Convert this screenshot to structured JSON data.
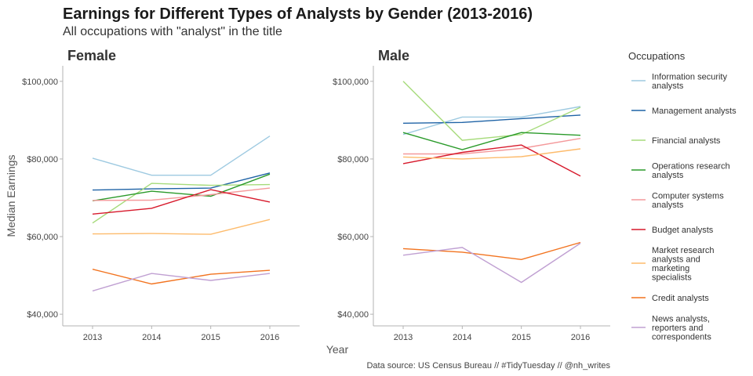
{
  "chart_data": {
    "type": "line",
    "title": "Earnings for Different Types of Analysts by Gender (2013-2016)",
    "subtitle": "All occupations with \"analyst\" in the title",
    "xlabel": "Year",
    "ylabel": "Median Earnings",
    "caption": "Data source: US Census Bureau // #TidyTuesday // @nh_writes",
    "legend_title": "Occupations",
    "legend_position": "right",
    "grid": false,
    "x": [
      2013,
      2014,
      2015,
      2016
    ],
    "x_tick_labels": [
      "2013",
      "2014",
      "2015",
      "2016"
    ],
    "ylim": [
      37000,
      104000
    ],
    "y_ticks": [
      40000,
      60000,
      80000,
      100000
    ],
    "y_tick_labels": [
      "$40,000",
      "$60,000",
      "$80,000",
      "$100,000"
    ],
    "series_meta": [
      {
        "name": "Information security analysts",
        "color": "#9ecae1"
      },
      {
        "name": "Management analysts",
        "color": "#1f63a6"
      },
      {
        "name": "Financial analysts",
        "color": "#a6db7b"
      },
      {
        "name": "Operations research analysts",
        "color": "#2a9a2a"
      },
      {
        "name": "Computer systems analysts",
        "color": "#f4999b"
      },
      {
        "name": "Budget analysts",
        "color": "#d7192b"
      },
      {
        "name": "Market research analysts and marketing specialists",
        "color": "#fdbb6c"
      },
      {
        "name": "Credit analysts",
        "color": "#f2731f"
      },
      {
        "name": "News analysts, reporters and correspondents",
        "color": "#c0a0d2"
      }
    ],
    "legend_labels": [
      [
        "Information security",
        "analysts"
      ],
      [
        "Management analysts"
      ],
      [
        "Financial analysts"
      ],
      [
        "Operations research",
        "analysts"
      ],
      [
        "Computer systems",
        "analysts"
      ],
      [
        "Budget analysts"
      ],
      [
        "Market research",
        "analysts and",
        "marketing",
        "specialists"
      ],
      [
        "Credit analysts"
      ],
      [
        "News analysts,",
        "reporters and",
        "correspondents"
      ]
    ],
    "panels": [
      {
        "label": "Female",
        "series": [
          {
            "name": "Information security analysts",
            "values": [
              80200,
              75800,
              75800,
              85900
            ]
          },
          {
            "name": "Management analysts",
            "values": [
              72000,
              72300,
              72500,
              76400
            ]
          },
          {
            "name": "Financial analysts",
            "values": [
              63500,
              73700,
              73200,
              73400
            ]
          },
          {
            "name": "Operations research analysts",
            "values": [
              69200,
              71700,
              70400,
              76100
            ]
          },
          {
            "name": "Computer systems analysts",
            "values": [
              69300,
              69400,
              70800,
              72500
            ]
          },
          {
            "name": "Budget analysts",
            "values": [
              65800,
              67300,
              72100,
              68900
            ]
          },
          {
            "name": "Market research analysts and marketing specialists",
            "values": [
              60700,
              60800,
              60600,
              64400
            ]
          },
          {
            "name": "Credit analysts",
            "values": [
              51600,
              47800,
              50300,
              51300
            ]
          },
          {
            "name": "News analysts, reporters and correspondents",
            "values": [
              46000,
              50500,
              48700,
              50500
            ]
          }
        ]
      },
      {
        "label": "Male",
        "series": [
          {
            "name": "Information security analysts",
            "values": [
              86300,
              90800,
              90800,
              93500
            ]
          },
          {
            "name": "Management analysts",
            "values": [
              89200,
              89400,
              90400,
              91300
            ]
          },
          {
            "name": "Financial analysts",
            "values": [
              100000,
              84800,
              86300,
              93300
            ]
          },
          {
            "name": "Operations research analysts",
            "values": [
              86800,
              82400,
              86800,
              86100
            ]
          },
          {
            "name": "Computer systems analysts",
            "values": [
              81300,
              81300,
              82700,
              85300
            ]
          },
          {
            "name": "Budget analysts",
            "values": [
              78800,
              81700,
              83600,
              75600
            ]
          },
          {
            "name": "Market research analysts and marketing specialists",
            "values": [
              80500,
              80000,
              80600,
              82600
            ]
          },
          {
            "name": "Credit analysts",
            "values": [
              56900,
              56000,
              54100,
              58500
            ]
          },
          {
            "name": "News analysts, reporters and correspondents",
            "values": [
              55200,
              57200,
              48200,
              58300
            ]
          }
        ]
      }
    ]
  }
}
